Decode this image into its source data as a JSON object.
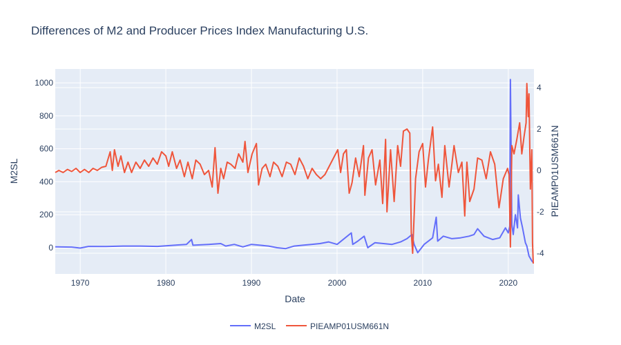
{
  "chart_data": {
    "type": "line",
    "title": "Differences of M2 and Producer Prices Index Manufacturing U.S.",
    "xlabel": "Date",
    "ylabel": "M2SL",
    "y2label": "PIEAMP01USM661N",
    "xlim": [
      "1967-02",
      "2022-12"
    ],
    "ylim": [
      -159,
      1084
    ],
    "y2lim": [
      -5.0,
      4.9
    ],
    "xticks": [
      "1970",
      "1980",
      "1990",
      "2000",
      "2010",
      "2020"
    ],
    "yticks": [
      0,
      200,
      400,
      600,
      800,
      1000
    ],
    "y2ticks": [
      -4,
      -2,
      0,
      2,
      4
    ],
    "grid": true,
    "legend": "bottom-center",
    "colors": {
      "M2SL": "#636efa",
      "PIEAMP01USM661N": "#ef553b",
      "plot_bg": "#e5ecf6"
    },
    "series": [
      {
        "name": "M2SL",
        "axis": "left",
        "x": [
          "1967-02",
          "1969-01",
          "1970-01",
          "1971-01",
          "1973-01",
          "1975-01",
          "1977-01",
          "1979-01",
          "1981-01",
          "1982-06",
          "1983-01",
          "1983-03",
          "1985-01",
          "1986-06",
          "1987-01",
          "1988-01",
          "1989-01",
          "1990-01",
          "1991-01",
          "1992-01",
          "1993-01",
          "1994-01",
          "1995-01",
          "1996-01",
          "1997-01",
          "1998-01",
          "1999-01",
          "2000-01",
          "2001-09",
          "2001-11",
          "2002-06",
          "2003-03",
          "2003-08",
          "2004-06",
          "2005-06",
          "2006-06",
          "2007-06",
          "2008-03",
          "2008-10",
          "2009-01",
          "2009-06",
          "2010-03",
          "2011-03",
          "2011-08",
          "2011-10",
          "2012-06",
          "2013-06",
          "2014-06",
          "2015-06",
          "2016-01",
          "2016-06",
          "2017-03",
          "2018-03",
          "2019-01",
          "2019-09",
          "2020-01",
          "2020-03",
          "2020-04",
          "2020-06",
          "2020-08",
          "2020-11",
          "2021-02",
          "2021-03",
          "2021-06",
          "2021-09",
          "2022-01",
          "2022-03",
          "2022-06",
          "2022-10",
          "2022-12"
        ],
        "y": [
          5,
          4,
          -2,
          8,
          7,
          10,
          10,
          8,
          15,
          20,
          50,
          15,
          20,
          25,
          10,
          20,
          5,
          20,
          15,
          10,
          0,
          -5,
          10,
          15,
          20,
          25,
          35,
          20,
          90,
          20,
          40,
          70,
          0,
          30,
          25,
          20,
          35,
          55,
          80,
          20,
          -30,
          20,
          60,
          185,
          40,
          70,
          55,
          60,
          70,
          80,
          115,
          70,
          50,
          60,
          120,
          90,
          130,
          1020,
          140,
          80,
          200,
          120,
          320,
          180,
          120,
          30,
          10,
          -50,
          -80,
          -90
        ]
      },
      {
        "name": "PIEAMP01USM661N",
        "axis": "right",
        "x": [
          "1967-02",
          "1967-07",
          "1968-01",
          "1968-07",
          "1969-01",
          "1969-07",
          "1970-01",
          "1970-07",
          "1971-01",
          "1971-07",
          "1972-01",
          "1972-07",
          "1973-01",
          "1973-07",
          "1973-10",
          "1974-01",
          "1974-06",
          "1974-10",
          "1975-03",
          "1975-08",
          "1976-01",
          "1976-07",
          "1977-01",
          "1977-07",
          "1978-01",
          "1978-07",
          "1979-01",
          "1979-07",
          "1980-01",
          "1980-05",
          "1980-10",
          "1981-04",
          "1981-09",
          "1982-03",
          "1982-08",
          "1983-02",
          "1983-07",
          "1984-01",
          "1984-07",
          "1985-01",
          "1985-06",
          "1985-10",
          "1986-02",
          "1986-06",
          "1986-10",
          "1987-03",
          "1987-08",
          "1988-02",
          "1988-07",
          "1989-01",
          "1989-04",
          "1989-08",
          "1990-02",
          "1990-08",
          "1990-11",
          "1991-04",
          "1991-09",
          "1992-03",
          "1992-08",
          "1993-02",
          "1993-08",
          "1994-02",
          "1994-08",
          "1995-02",
          "1995-08",
          "1996-02",
          "1996-08",
          "1997-02",
          "1997-08",
          "1998-02",
          "1998-08",
          "1999-02",
          "1999-08",
          "2000-02",
          "2000-06",
          "2000-10",
          "2001-02",
          "2001-06",
          "2001-10",
          "2002-03",
          "2002-08",
          "2003-02",
          "2003-04",
          "2003-09",
          "2004-02",
          "2004-07",
          "2005-01",
          "2005-05",
          "2005-09",
          "2005-11",
          "2006-04",
          "2006-09",
          "2007-02",
          "2007-06",
          "2007-10",
          "2008-03",
          "2008-07",
          "2008-09",
          "2008-11",
          "2009-03",
          "2009-08",
          "2010-01",
          "2010-05",
          "2010-09",
          "2011-03",
          "2011-07",
          "2011-11",
          "2012-04",
          "2012-08",
          "2013-02",
          "2013-06",
          "2013-09",
          "2014-03",
          "2014-08",
          "2014-12",
          "2015-03",
          "2015-07",
          "2016-01",
          "2016-06",
          "2016-12",
          "2017-06",
          "2017-12",
          "2018-06",
          "2018-12",
          "2019-06",
          "2019-12",
          "2020-02",
          "2020-04",
          "2020-06",
          "2020-09",
          "2021-01",
          "2021-05",
          "2021-08",
          "2021-11",
          "2022-02",
          "2022-03",
          "2022-05",
          "2022-06",
          "2022-08",
          "2022-10",
          "2022-11",
          "2022-12"
        ],
        "y": [
          -0.1,
          0.0,
          -0.1,
          0.05,
          -0.05,
          0.1,
          -0.1,
          0.05,
          -0.1,
          0.1,
          0.0,
          0.15,
          0.2,
          0.9,
          0.0,
          1.0,
          0.2,
          0.7,
          -0.1,
          0.4,
          -0.1,
          0.4,
          0.1,
          0.5,
          0.2,
          0.6,
          0.3,
          0.9,
          0.7,
          0.2,
          0.9,
          0.1,
          0.5,
          -0.3,
          0.4,
          -0.4,
          0.5,
          0.3,
          -0.2,
          0.0,
          -0.8,
          1.1,
          -1.1,
          0.1,
          -0.4,
          0.4,
          0.3,
          0.1,
          0.8,
          0.4,
          1.4,
          -0.1,
          0.8,
          1.3,
          -0.7,
          0.1,
          0.3,
          -0.3,
          0.4,
          0.2,
          -0.3,
          0.4,
          0.3,
          -0.2,
          0.6,
          0.2,
          -0.4,
          0.1,
          -0.2,
          -0.4,
          -0.2,
          0.2,
          0.6,
          1.0,
          -0.1,
          0.8,
          1.0,
          -1.1,
          -0.6,
          0.6,
          -0.3,
          1.2,
          -1.2,
          0.6,
          1.0,
          -0.7,
          0.5,
          -1.6,
          1.5,
          -2.0,
          1.0,
          -1.5,
          1.2,
          0.2,
          1.9,
          2.0,
          1.8,
          -3.0,
          -4.0,
          -0.4,
          0.9,
          1.3,
          -0.8,
          0.5,
          2.1,
          -0.5,
          0.3,
          -1.3,
          1.2,
          -0.8,
          0.3,
          1.2,
          -0.1,
          0.4,
          -2.2,
          0.4,
          -1.5,
          -0.9,
          0.6,
          0.5,
          -0.4,
          0.9,
          0.3,
          -1.8,
          -0.4,
          0.1,
          -0.2,
          -3.7,
          1.2,
          0.8,
          1.5,
          2.3,
          0.8,
          1.6,
          2.3,
          4.2,
          2.6,
          3.7,
          -0.9,
          1.0,
          -3.5,
          -4.5
        ]
      }
    ]
  }
}
